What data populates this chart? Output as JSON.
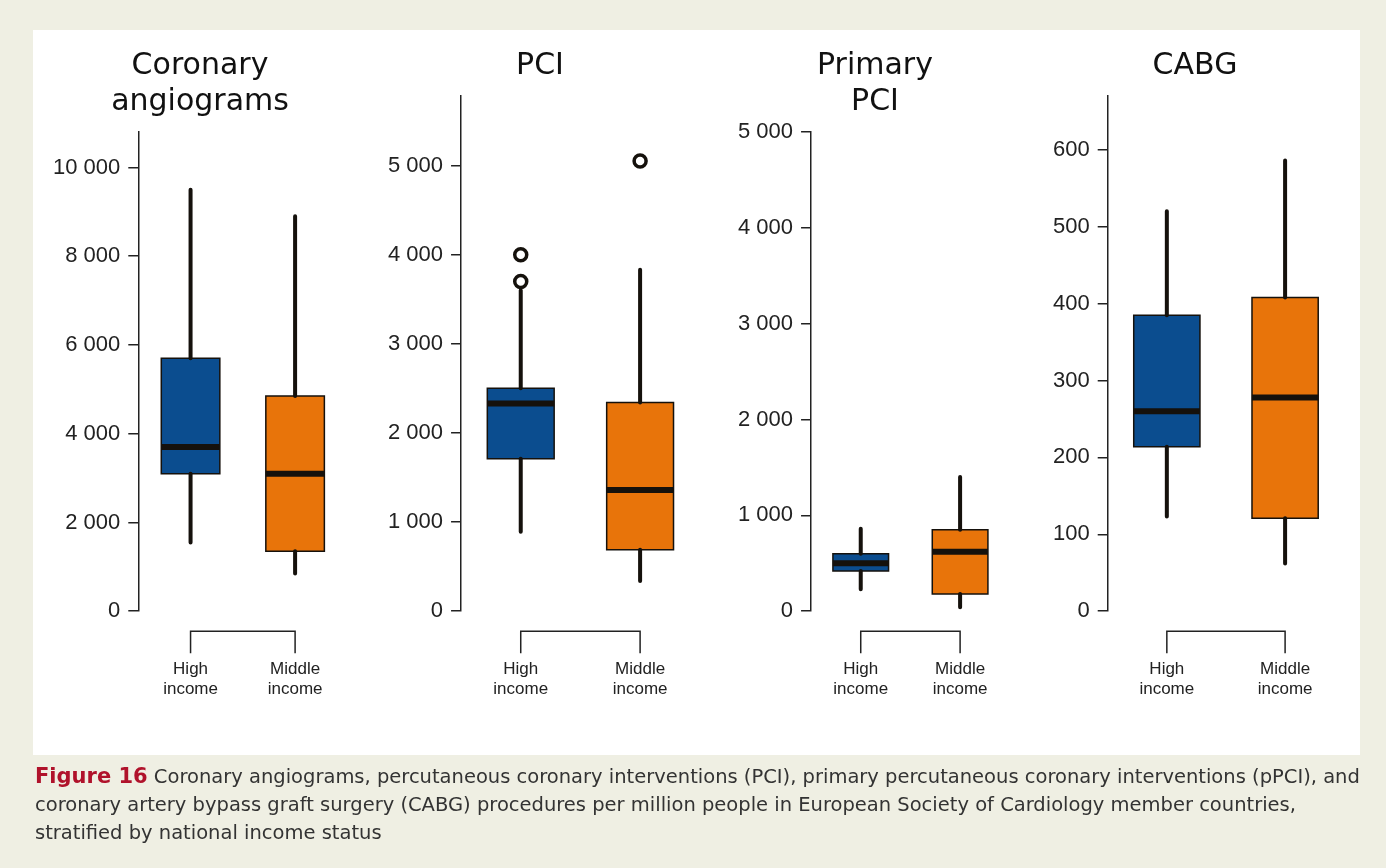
{
  "chart_data": [
    {
      "type": "box",
      "title": "Coronary angiograms",
      "categories": [
        "High income",
        "Middle income"
      ],
      "colors": [
        "#0b4d8f",
        "#e8740a"
      ],
      "boxes": [
        {
          "low": 1550,
          "q1": 3100,
          "median": 3700,
          "q3": 5700,
          "high": 9500
        },
        {
          "low": 850,
          "q1": 1350,
          "median": 3100,
          "q3": 4850,
          "high": 8900
        }
      ],
      "ylim": [
        0,
        10800
      ],
      "yticks": [
        0,
        {
          "value": 2000,
          "label": "2 000"
        },
        {
          "value": 4000,
          "label": "4 000"
        },
        {
          "value": 6000,
          "label": "6 000"
        },
        {
          "value": 8000,
          "label": "8 000"
        },
        {
          "value": 10000,
          "label": "10 000"
        }
      ],
      "annotations": [
        "Figure 16",
        "Coronary angiograms, percutaneous coronary interventions (PCI), primary percutaneous coronary interventions (pPCI), and coronary artery bypass graft surgery (CABG) procedures per million people in European Society of Cardiology member countries, stratified by national income status"
      ]
    },
    {
      "type": "box",
      "title": "PCI",
      "categories": [
        "High income",
        "Middle income"
      ],
      "colors": [
        "#0b4d8f",
        "#e8740a"
      ],
      "boxes": [
        {
          "low": 890,
          "q1": 1710,
          "median": 2330,
          "q3": 2500,
          "high": 3600,
          "outliers": [
            3700,
            4000
          ]
        },
        {
          "low": 340,
          "q1": 690,
          "median": 1360,
          "q3": 2340,
          "high": 3830,
          "outliers": [
            5050
          ]
        }
      ],
      "ylim": [
        0,
        5780
      ],
      "yticks": [
        0,
        {
          "value": 1000,
          "label": "1 000"
        },
        {
          "value": 2000,
          "label": "2 000"
        },
        {
          "value": 3000,
          "label": "3 000"
        },
        {
          "value": 4000,
          "label": "4 000"
        },
        {
          "value": 5000,
          "label": "5 000"
        }
      ]
    },
    {
      "type": "box",
      "title": "Primary PCI",
      "categories": [
        "High income",
        "Middle income"
      ],
      "colors": [
        "#0b4d8f",
        "#e8740a"
      ],
      "boxes": [
        {
          "low": 230,
          "q1": 420,
          "median": 500,
          "q3": 600,
          "high": 860
        },
        {
          "low": 40,
          "q1": 180,
          "median": 620,
          "q3": 850,
          "high": 1400
        }
      ],
      "ylim": [
        0,
        5000
      ],
      "yticks": [
        0,
        {
          "value": 1000,
          "label": "1 000"
        },
        {
          "value": 2000,
          "label": "2 000"
        },
        {
          "value": 3000,
          "label": "3 000"
        },
        {
          "value": 4000,
          "label": "4 000"
        },
        {
          "value": 5000,
          "label": "5 000"
        }
      ]
    },
    {
      "type": "box",
      "title": "CABG",
      "categories": [
        "High income",
        "Middle income"
      ],
      "colors": [
        "#0b4d8f",
        "#e8740a"
      ],
      "boxes": [
        {
          "low": 123,
          "q1": 214,
          "median": 260,
          "q3": 385,
          "high": 520
        },
        {
          "low": 62,
          "q1": 121,
          "median": 278,
          "q3": 408,
          "high": 586
        }
      ],
      "ylim": [
        0,
        670
      ],
      "yticks": [
        0,
        100,
        200,
        300,
        400,
        500,
        600
      ]
    }
  ]
}
